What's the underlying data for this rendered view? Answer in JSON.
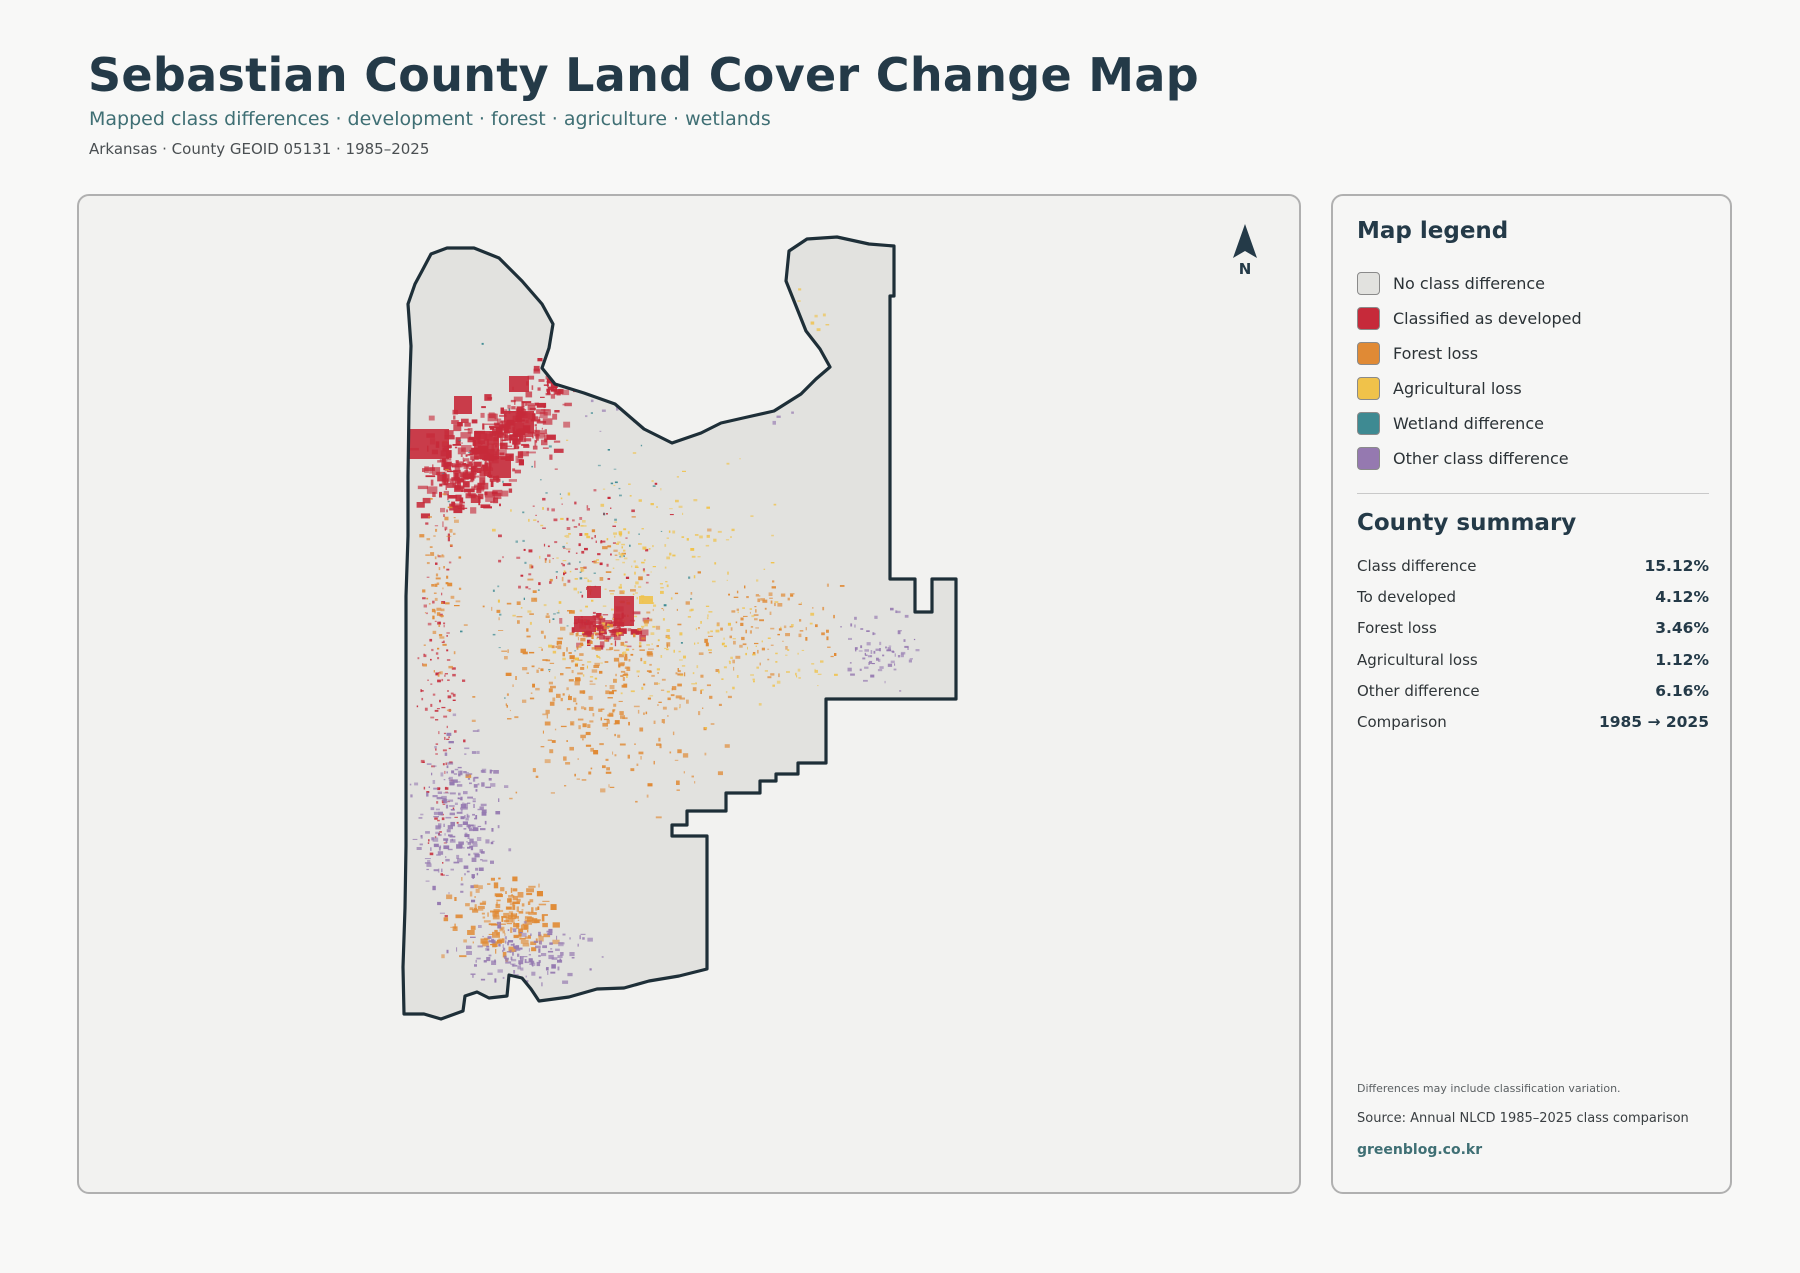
{
  "header": {
    "title": "Sebastian County Land Cover Change Map",
    "subtitle": "Mapped class differences · development · forest · agriculture · wetlands",
    "meta": "Arkansas · County GEOID 05131 · 1985–2025"
  },
  "map": {
    "north_label": "N",
    "colors": {
      "background": "#f2f2f0",
      "county_fill": "#e2e2df",
      "outline": "#1e2f38"
    }
  },
  "legend": {
    "title": "Map legend",
    "items": [
      {
        "label": "No class difference",
        "color": "#e2e2df"
      },
      {
        "label": "Classified as developed",
        "color": "#c62a3a"
      },
      {
        "label": "Forest loss",
        "color": "#e08a35"
      },
      {
        "label": "Agricultural loss",
        "color": "#f0c24a"
      },
      {
        "label": "Wetland difference",
        "color": "#3e8a92"
      },
      {
        "label": "Other class difference",
        "color": "#9579b0"
      }
    ]
  },
  "summary": {
    "title": "County summary",
    "rows": [
      {
        "label": "Class difference",
        "value": "15.12%"
      },
      {
        "label": "To developed",
        "value": "4.12%"
      },
      {
        "label": "Forest loss",
        "value": "3.46%"
      },
      {
        "label": "Agricultural loss",
        "value": "1.12%"
      },
      {
        "label": "Other difference",
        "value": "6.16%"
      },
      {
        "label": "Comparison",
        "value": "1985 → 2025"
      }
    ]
  },
  "footer": {
    "note": "Differences may include classification variation.",
    "source": "Source: Annual NLCD 1985–2025 class comparison",
    "site": "greenblog.co.kr"
  }
}
